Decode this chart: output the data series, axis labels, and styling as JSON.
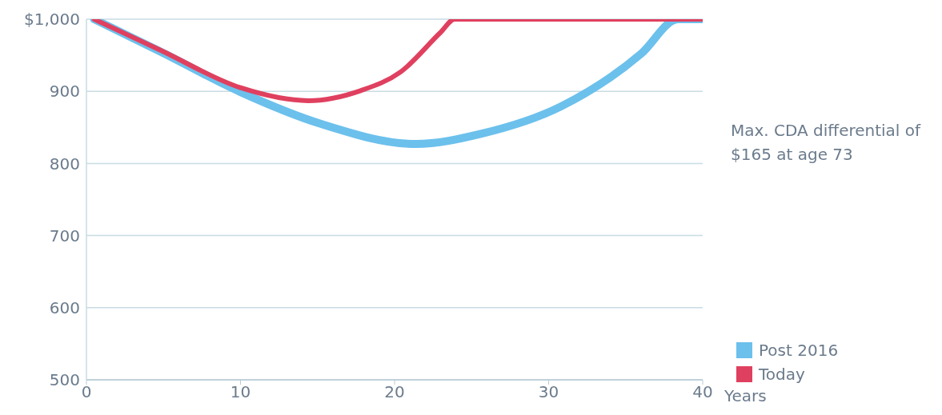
{
  "chart_data": {
    "type": "line",
    "xlabel": "Years",
    "annotations": [
      "Max. CDA differential of $165 at age 73"
    ],
    "series": [
      {
        "name": "Post 2016",
        "color": "#6cc0ec",
        "x": [
          0.5,
          4.8,
          10,
          15.2,
          21.4,
          25.6,
          30.8,
          36,
          38.4,
          40
        ],
        "values": [
          1000,
          955,
          899,
          855,
          827,
          841,
          879,
          952,
          1000,
          1000
        ]
      },
      {
        "name": "Today",
        "color": "#e0405f",
        "x": [
          0.5,
          4.8,
          10,
          14.4,
          17.8,
          20.4,
          23,
          23.9,
          40
        ],
        "values": [
          1000,
          957,
          905,
          887,
          901,
          927,
          982,
          1000,
          1000
        ]
      }
    ],
    "xlim": [
      0,
      40
    ],
    "xticks": [
      0,
      10,
      20,
      30,
      40
    ],
    "ylim": [
      500,
      1000
    ],
    "yticks": [
      500,
      600,
      700,
      800,
      900,
      {
        "value": 1000,
        "label": "$1,000"
      }
    ],
    "grid": "y",
    "legend": "bottom right",
    "marker": "none",
    "line_style": "solid"
  }
}
